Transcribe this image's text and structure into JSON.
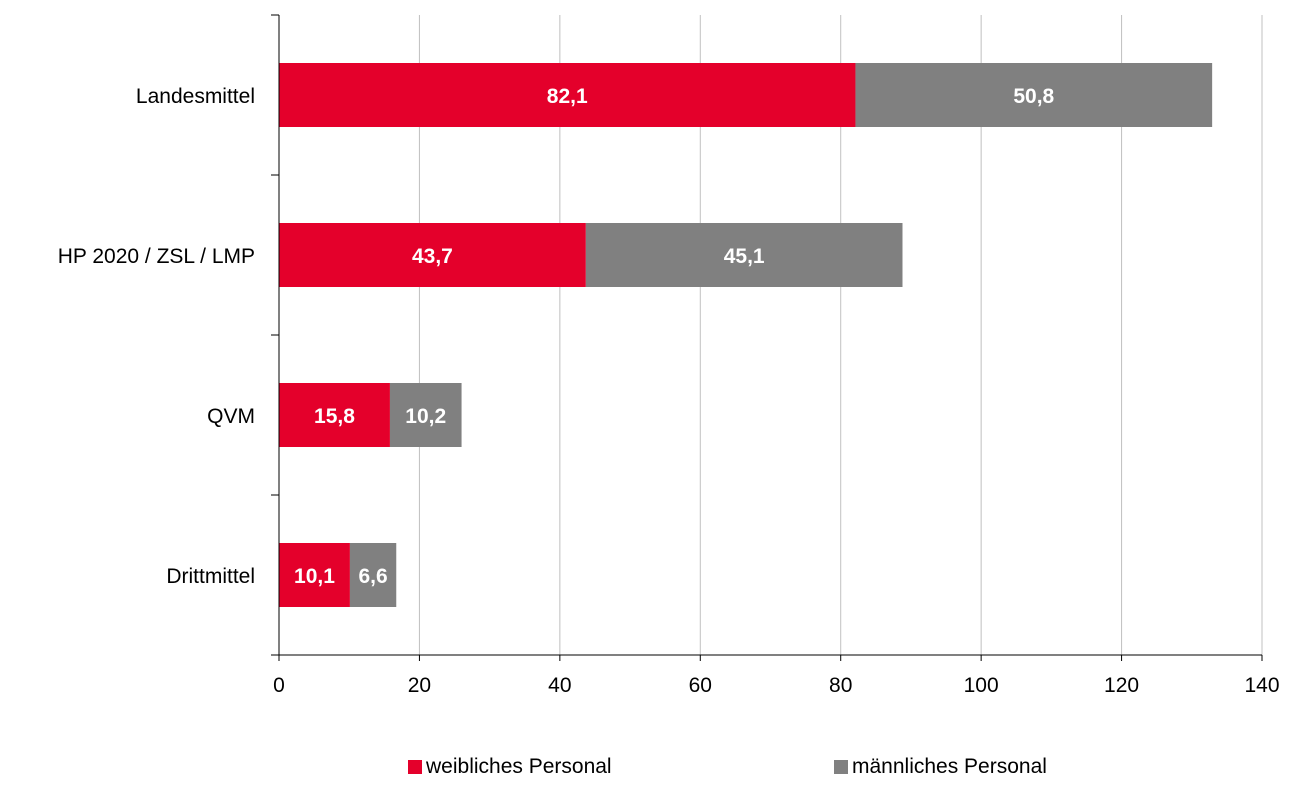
{
  "chart_data": {
    "type": "bar",
    "orientation": "horizontal",
    "stacked": true,
    "categories": [
      "Landesmittel",
      "HP 2020 / ZSL / LMP",
      "QVM",
      "Drittmittel"
    ],
    "series": [
      {
        "name": "weibliches Personal",
        "color": "#e4002b",
        "values": [
          82.1,
          43.7,
          15.8,
          10.1
        ],
        "labels": [
          "82,1",
          "43,7",
          "15,8",
          "10,1"
        ]
      },
      {
        "name": "männliches Personal",
        "color": "#808080",
        "values": [
          50.8,
          45.1,
          10.2,
          6.6
        ],
        "labels": [
          "50,8",
          "45,1",
          "10,2",
          "6,6"
        ]
      }
    ],
    "xlim": [
      0,
      140
    ],
    "x_ticks": [
      "0",
      "20",
      "40",
      "60",
      "80",
      "100",
      "120",
      "140"
    ],
    "x_tick_values": [
      0,
      20,
      40,
      60,
      80,
      100,
      120,
      140
    ],
    "grid": "vertical",
    "legend": "bottom-center"
  }
}
